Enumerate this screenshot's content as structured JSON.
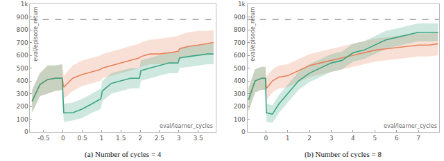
{
  "chart_data": [
    {
      "type": "line",
      "title": "(a) Number of cycles = 4",
      "x_label": "eval/learner_cycles",
      "y_label": "eval/episode_return",
      "x": [
        -0.8,
        -0.6,
        -0.4,
        -0.2,
        -0.02,
        0.02,
        0.25,
        0.5,
        0.75,
        0.98,
        1.02,
        1.25,
        1.5,
        1.75,
        1.98,
        2.02,
        2.25,
        2.5,
        2.75,
        2.98,
        3.02,
        3.25,
        3.5,
        3.75,
        3.9
      ],
      "xlim": [
        -0.85,
        3.95
      ],
      "xticks": [
        -0.5,
        0,
        0.5,
        1,
        1.5,
        2,
        2.5,
        3,
        3.5
      ],
      "ylim": [
        0,
        1000
      ],
      "yticks": [
        0,
        100,
        200,
        300,
        400,
        500,
        600,
        700,
        800,
        900,
        {
          "value": 1000,
          "label": "1k"
        }
      ],
      "grid": false,
      "reference_line": {
        "value": 880,
        "line_style": "dashed"
      },
      "series": [
        {
          "color": "#e8825a",
          "values": [
            240,
            370,
            410,
            420,
            420,
            350,
            420,
            450,
            470,
            490,
            500,
            520,
            540,
            560,
            580,
            590,
            610,
            610,
            620,
            630,
            650,
            670,
            680,
            690,
            700
          ],
          "lower": [
            150,
            280,
            300,
            320,
            330,
            260,
            320,
            360,
            380,
            400,
            420,
            440,
            460,
            480,
            500,
            510,
            530,
            530,
            540,
            550,
            570,
            590,
            600,
            610,
            620
          ],
          "upper": [
            330,
            460,
            520,
            520,
            530,
            440,
            520,
            560,
            580,
            600,
            610,
            630,
            650,
            670,
            690,
            700,
            720,
            730,
            740,
            750,
            760,
            780,
            790,
            790,
            800
          ]
        },
        {
          "color": "#3aa583",
          "values": [
            240,
            370,
            410,
            420,
            420,
            150,
            150,
            180,
            220,
            260,
            320,
            380,
            400,
            420,
            420,
            480,
            500,
            520,
            540,
            540,
            580,
            590,
            600,
            610,
            610
          ],
          "lower": [
            150,
            280,
            300,
            320,
            330,
            80,
            90,
            110,
            150,
            180,
            240,
            300,
            320,
            340,
            340,
            400,
            420,
            440,
            460,
            460,
            500,
            510,
            520,
            530,
            530
          ],
          "upper": [
            330,
            460,
            520,
            520,
            530,
            220,
            230,
            260,
            300,
            340,
            400,
            460,
            480,
            500,
            500,
            560,
            580,
            600,
            620,
            620,
            660,
            670,
            680,
            690,
            690
          ]
        }
      ]
    },
    {
      "type": "line",
      "title": "(b) Number of cycles = 8",
      "x_label": "eval/learner_cycles",
      "y_label": "eval/episode_return",
      "x": [
        -0.8,
        -0.5,
        -0.2,
        -0.02,
        0.02,
        0.3,
        0.6,
        1,
        1.5,
        2,
        2.5,
        3,
        3.5,
        4,
        4.5,
        5,
        5.5,
        6,
        6.5,
        7,
        7.5,
        7.9
      ],
      "xlim": [
        -0.85,
        7.95
      ],
      "xticks": [
        0,
        1,
        2,
        3,
        4,
        5,
        6,
        7
      ],
      "ylim": [
        0,
        1000
      ],
      "yticks": [
        0,
        100,
        200,
        300,
        400,
        500,
        600,
        700,
        800,
        900,
        {
          "value": 1000,
          "label": "1k"
        }
      ],
      "grid": false,
      "reference_line": {
        "value": 880,
        "line_style": "dashed"
      },
      "series": [
        {
          "color": "#e8825a",
          "values": [
            250,
            400,
            420,
            420,
            340,
            400,
            430,
            440,
            480,
            520,
            540,
            560,
            580,
            600,
            620,
            640,
            650,
            660,
            670,
            680,
            680,
            690
          ],
          "lower": [
            160,
            310,
            330,
            330,
            250,
            310,
            340,
            350,
            390,
            430,
            450,
            470,
            490,
            510,
            530,
            550,
            560,
            570,
            580,
            590,
            590,
            600
          ],
          "upper": [
            340,
            490,
            510,
            510,
            430,
            490,
            520,
            530,
            570,
            610,
            630,
            650,
            670,
            690,
            710,
            730,
            740,
            750,
            760,
            770,
            770,
            780
          ]
        },
        {
          "color": "#3aa583",
          "values": [
            250,
            400,
            420,
            420,
            150,
            140,
            220,
            300,
            400,
            460,
            500,
            540,
            560,
            620,
            640,
            680,
            720,
            740,
            760,
            780,
            780,
            780
          ],
          "lower": [
            160,
            310,
            330,
            330,
            80,
            70,
            150,
            230,
            330,
            390,
            430,
            470,
            490,
            550,
            570,
            610,
            650,
            670,
            690,
            710,
            710,
            710
          ],
          "upper": [
            340,
            490,
            510,
            510,
            220,
            210,
            290,
            370,
            470,
            530,
            570,
            610,
            630,
            690,
            710,
            750,
            790,
            810,
            830,
            850,
            850,
            850
          ]
        }
      ]
    }
  ]
}
